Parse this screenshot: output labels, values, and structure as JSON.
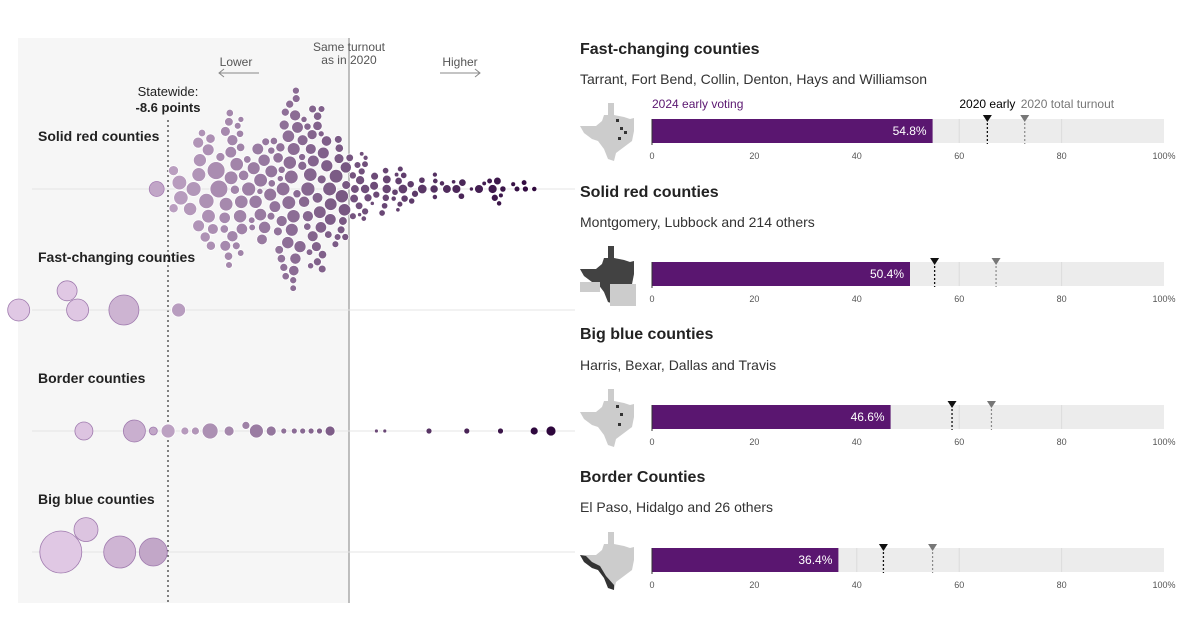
{
  "colors": {
    "purple": "#5a1670",
    "bar_track": "#ececec",
    "panel_bg": "#f6f6f6",
    "center_line": "#aaaaaa",
    "gray_marker": "#777777",
    "map_gray": "#cccccc",
    "map_dark": "#333333"
  },
  "left_chart": {
    "annotations": {
      "same_turnout_line1": "Same turnout",
      "same_turnout_line2": "as in 2020",
      "lower": "Lower",
      "higher": "Higher",
      "statewide_label": "Statewide:",
      "statewide_value": "-8.6 points"
    },
    "groups": [
      {
        "name": "Solid red counties"
      },
      {
        "name": "Fast-changing counties"
      },
      {
        "name": "Border counties"
      },
      {
        "name": "Big blue counties"
      }
    ]
  },
  "chart_data": [
    {
      "type": "scatter",
      "title": "",
      "xlabel": "",
      "ylabel": "",
      "x_unit": "points change in turnout vs. 2020",
      "reference_lines": [
        {
          "label": "Same turnout as in 2020",
          "x": 0
        },
        {
          "label": "Statewide: -8.6 points",
          "x": -8.6
        }
      ],
      "series": [
        {
          "name": "Fast-changing counties",
          "points": [
            {
              "x": -21.5,
              "r": 10
            },
            {
              "x": -15.7,
              "r": 11
            },
            {
              "x": -13.4,
              "r": 10
            },
            {
              "x": -12.9,
              "r": 11
            },
            {
              "x": -10.7,
              "r": 15
            },
            {
              "x": -8.1,
              "r": 7
            }
          ]
        },
        {
          "name": "Border counties",
          "points": [
            {
              "x": -12.6,
              "r": 9
            },
            {
              "x": -10.2,
              "r": 11
            },
            {
              "x": -9.3,
              "r": 4
            },
            {
              "x": -8.6,
              "r": 7
            },
            {
              "x": -7.8,
              "r": 4
            },
            {
              "x": -7.3,
              "r": 4
            },
            {
              "x": -6.6,
              "r": 8
            },
            {
              "x": -5.7,
              "r": 5
            },
            {
              "x": -4.9,
              "r": 4
            },
            {
              "x": -4.4,
              "r": 7
            },
            {
              "x": -3.7,
              "r": 5
            },
            {
              "x": -3.1,
              "r": 3
            },
            {
              "x": -2.6,
              "r": 3
            },
            {
              "x": -2.2,
              "r": 3
            },
            {
              "x": -1.8,
              "r": 3
            },
            {
              "x": -1.4,
              "r": 3
            },
            {
              "x": -0.9,
              "r": 5
            },
            {
              "x": 1.3,
              "r": 2
            },
            {
              "x": 1.7,
              "r": 2
            },
            {
              "x": 3.8,
              "r": 3
            },
            {
              "x": 5.6,
              "r": 3
            },
            {
              "x": 7.2,
              "r": 3
            },
            {
              "x": 8.8,
              "r": 4
            },
            {
              "x": 9.6,
              "r": 5
            }
          ]
        },
        {
          "name": "Big blue counties",
          "points": [
            {
              "x": -13.7,
              "r": 21
            },
            {
              "x": -12.5,
              "r": 12
            },
            {
              "x": -10.9,
              "r": 16
            },
            {
              "x": -9.3,
              "r": 14
            }
          ]
        }
      ]
    },
    {
      "type": "bar",
      "title": "",
      "xlabel": "",
      "ylabel": "",
      "xlim": [
        0,
        100
      ],
      "ticks": [
        "0",
        "20",
        "40",
        "60",
        "80",
        "100%"
      ],
      "legend": [
        "2024 early voting",
        "2020 early",
        "2020 total turnout"
      ],
      "panels": [
        {
          "title": "Fast-changing counties",
          "subtitle": "Tarrant, Fort Bend, Collin, Denton, Hays and Williamson",
          "value": 54.8,
          "value_label": "54.8%",
          "early_2020": 65.5,
          "total_2020": 72.8,
          "map_dark_fraction": 0.05
        },
        {
          "title": "Solid red counties",
          "subtitle": "Montgomery, Lubbock and 214 others",
          "value": 50.4,
          "value_label": "50.4%",
          "early_2020": 55.2,
          "total_2020": 67.2,
          "map_dark_fraction": 0.75
        },
        {
          "title": "Big blue counties",
          "subtitle": "Harris, Bexar, Dallas and Travis",
          "value": 46.6,
          "value_label": "46.6%",
          "early_2020": 58.6,
          "total_2020": 66.3,
          "map_dark_fraction": 0.04
        },
        {
          "title": "Border Counties",
          "subtitle": "El Paso, Hidalgo and 26 others",
          "value": 36.4,
          "value_label": "36.4%",
          "early_2020": 45.2,
          "total_2020": 54.8,
          "map_dark_fraction": 0.2
        }
      ]
    }
  ]
}
